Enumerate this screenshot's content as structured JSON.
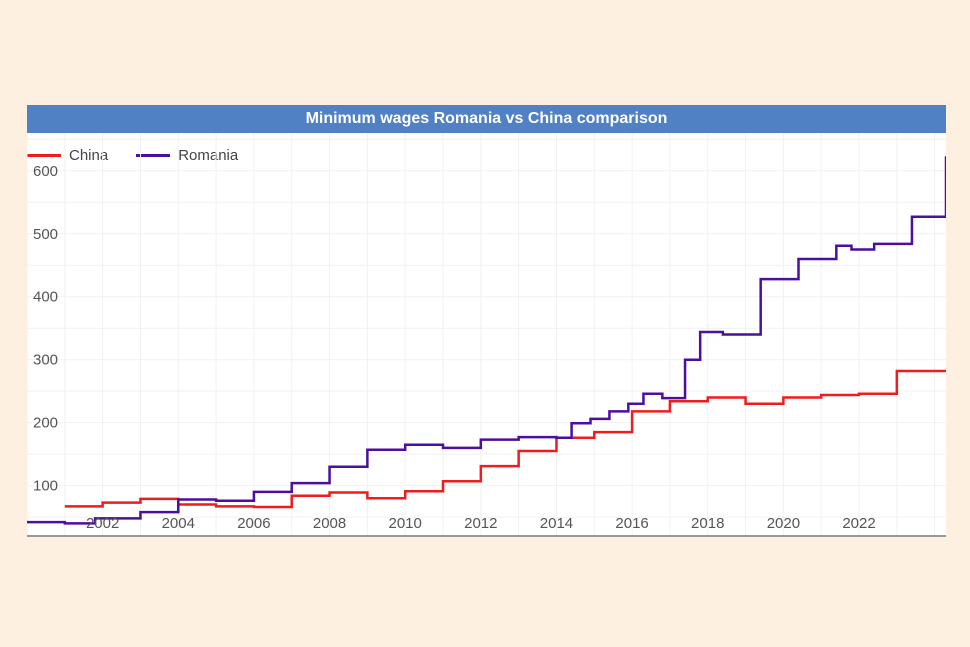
{
  "chart_data": {
    "type": "line",
    "title": "Minimum wages Romania vs China comparison",
    "xlabel": "",
    "ylabel": "",
    "xlim": [
      2000.0,
      2024.3
    ],
    "ylim": [
      20,
      660
    ],
    "x_ticks": [
      2002,
      2004,
      2006,
      2008,
      2010,
      2012,
      2014,
      2016,
      2018,
      2020,
      2022
    ],
    "y_ticks": [
      100,
      200,
      300,
      400,
      500,
      600
    ],
    "colors": {
      "China": "#ee1c1c",
      "Romania": "#4b0f9e"
    },
    "series": [
      {
        "name": "China",
        "step": true,
        "x": [
          2001.0,
          2002.0,
          2003.0,
          2004.0,
          2005.0,
          2006.0,
          2007.0,
          2008.0,
          2009.0,
          2010.0,
          2011.0,
          2012.0,
          2013.0,
          2014.0,
          2015.0,
          2016.0,
          2017.0,
          2018.0,
          2019.0,
          2020.0,
          2021.0,
          2022.0,
          2023.0,
          2024.3
        ],
        "y": [
          67,
          73,
          79,
          70,
          67,
          66,
          84,
          89,
          80,
          91,
          107,
          131,
          155,
          176,
          185,
          218,
          234,
          240,
          230,
          240,
          244,
          246,
          282,
          282
        ]
      },
      {
        "name": "Romania",
        "step": true,
        "x": [
          2000.0,
          2001.0,
          2001.8,
          2003.0,
          2004.0,
          2005.0,
          2006.0,
          2007.0,
          2008.0,
          2009.0,
          2010.0,
          2011.0,
          2012.0,
          2013.0,
          2014.0,
          2014.4,
          2014.9,
          2015.4,
          2015.9,
          2016.3,
          2016.8,
          2017.4,
          2017.8,
          2018.4,
          2019.4,
          2020.4,
          2021.4,
          2021.8,
          2022.4,
          2023.4,
          2024.3
        ],
        "y": [
          42,
          40,
          48,
          58,
          78,
          76,
          90,
          104,
          130,
          157,
          165,
          160,
          173,
          177,
          176,
          199,
          206,
          218,
          230,
          246,
          239,
          300,
          344,
          340,
          428,
          460,
          481,
          475,
          484,
          527,
          623
        ]
      }
    ]
  }
}
